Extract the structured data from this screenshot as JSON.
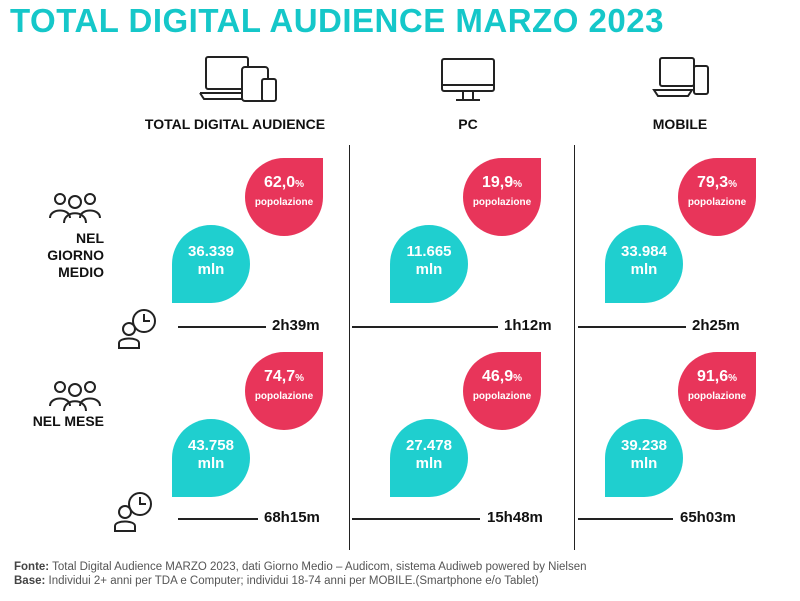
{
  "title": "TOTAL DIGITAL AUDIENCE MARZO 2023",
  "columns": [
    {
      "label": "TOTAL DIGITAL AUDIENCE",
      "icon": "devices-icon"
    },
    {
      "label": "PC",
      "icon": "desktop-icon"
    },
    {
      "label": "MOBILE",
      "icon": "mobile-icon"
    }
  ],
  "rows": [
    {
      "label_line1": "NEL GIORNO",
      "label_line2": "MEDIO",
      "cells": [
        {
          "pct": "62,0",
          "unit": "%",
          "pop": "popolazione",
          "num": "36.339",
          "mln": "mln",
          "time": "2h39m"
        },
        {
          "pct": "19,9",
          "unit": "%",
          "pop": "popolazione",
          "num": "11.665",
          "mln": "mln",
          "time": "1h12m"
        },
        {
          "pct": "79,3",
          "unit": "%",
          "pop": "popolazione",
          "num": "33.984",
          "mln": "mln",
          "time": "2h25m"
        }
      ]
    },
    {
      "label_line1": "NEL MESE",
      "label_line2": "",
      "cells": [
        {
          "pct": "74,7",
          "unit": "%",
          "pop": "popolazione",
          "num": "43.758",
          "mln": "mln",
          "time": "68h15m"
        },
        {
          "pct": "46,9",
          "unit": "%",
          "pop": "popolazione",
          "num": "27.478",
          "mln": "mln",
          "time": "15h48m"
        },
        {
          "pct": "91,6",
          "unit": "%",
          "pop": "popolazione",
          "num": "39.238",
          "mln": "mln",
          "time": "65h03m"
        }
      ]
    }
  ],
  "footer": {
    "fonte_label": "Fonte:",
    "fonte_text": " Total Digital Audience MARZO 2023, dati Giorno Medio – Audicom, sistema Audiweb powered by Nielsen",
    "base_label": "Base:",
    "base_text": "  Individui 2+ anni per TDA e Computer; individui 18-74 anni per MOBILE.(Smartphone e/o Tablet)"
  },
  "colors": {
    "title": "#15c7c9",
    "pink": "#e8355a",
    "teal": "#1fcfcf"
  }
}
